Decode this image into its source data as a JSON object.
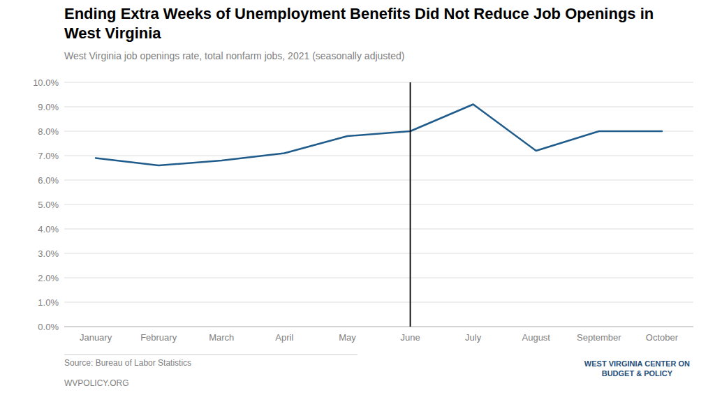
{
  "chart_data": {
    "type": "line",
    "title": "Ending Extra Weeks of Unemployment Benefits Did Not Reduce Job Openings in West Virginia",
    "subtitle": "West Virginia job openings rate, total nonfarm jobs, 2021 (seasonally adjusted)",
    "categories": [
      "January",
      "February",
      "March",
      "April",
      "May",
      "June",
      "July",
      "August",
      "September",
      "October"
    ],
    "values": [
      6.9,
      6.6,
      6.8,
      7.1,
      7.8,
      8.0,
      9.1,
      7.2,
      8.0,
      8.0
    ],
    "color": "#1f5c8b",
    "ylim": [
      0.0,
      10.0
    ],
    "yticks": [
      {
        "value": 0.0,
        "label": "0.0%"
      },
      {
        "value": 1.0,
        "label": "1.0%"
      },
      {
        "value": 2.0,
        "label": "2.0%"
      },
      {
        "value": 3.0,
        "label": "3.0%"
      },
      {
        "value": 4.0,
        "label": "4.0%"
      },
      {
        "value": 5.0,
        "label": "5.0%"
      },
      {
        "value": 6.0,
        "label": "6.0%"
      },
      {
        "value": 7.0,
        "label": "7.0%"
      },
      {
        "value": 8.0,
        "label": "8.0%"
      },
      {
        "value": 9.0,
        "label": "9.0%"
      },
      {
        "value": 10.0,
        "label": "10.0%"
      }
    ],
    "grid": true,
    "annotations": [
      {
        "type": "vline",
        "x": "June",
        "color": "#000000"
      },
      {
        "text": "Source: Bureau of Labor Statistics"
      },
      {
        "text": "WVPOLICY.ORG"
      },
      {
        "text": "WEST VIRGINIA CENTER ON\nBUDGET & POLICY"
      }
    ]
  }
}
